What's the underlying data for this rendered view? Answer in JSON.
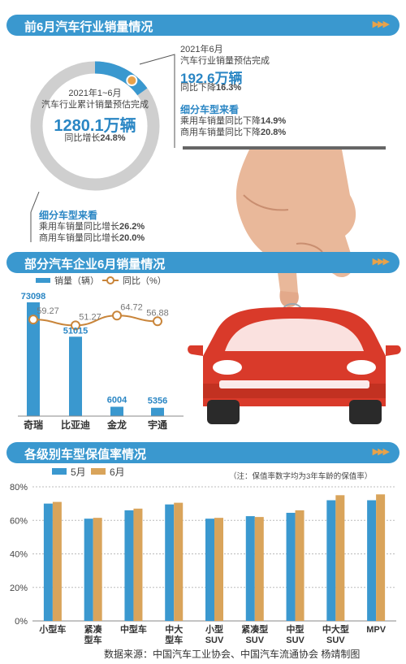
{
  "sections": {
    "s1_title": "前6月汽车行业销量情况",
    "s2_title": "部分汽车企业6月销量情况",
    "s3_title": "各级别车型保值率情况",
    "arrows": "▶▶▶"
  },
  "ring": {
    "period": "2021年1~6月",
    "desc": "汽车行业累计销量预估完成",
    "value": "1280.1万辆",
    "growth_label": "同比增长",
    "growth_value": "24.8%"
  },
  "june": {
    "period": "2021年6月",
    "desc": "汽车行业销量预估完成",
    "value": "192.6万辆",
    "change_label": "同比下降",
    "change_value": "16.3%",
    "sub_title": "细分车型来看",
    "passenger_label": "乘用车销量同比下降",
    "passenger_value": "14.9%",
    "commercial_label": "商用车销量同比下降",
    "commercial_value": "20.8%"
  },
  "half_year_breakdown": {
    "sub_title": "细分车型来看",
    "passenger_label": "乘用车销量同比增长",
    "passenger_value": "26.2%",
    "commercial_label": "商用车销量同比增长",
    "commercial_value": "20.0%"
  },
  "colors": {
    "blue": "#3a98cf",
    "orange": "#d9a45b",
    "line_orange": "#c9853a",
    "ring_gray": "#cfcfcf",
    "car_red": "#d93a2a"
  },
  "chart_data": [
    {
      "type": "bar",
      "categories": [
        "奇瑞",
        "比亚迪",
        "金龙",
        "宇通"
      ],
      "series": [
        {
          "name": "销量（辆）",
          "values": [
            73098,
            51015,
            6004,
            5356
          ]
        },
        {
          "name": "同比（%）",
          "type": "line",
          "values": [
            59.27,
            51.27,
            64.72,
            56.88
          ]
        }
      ],
      "legend": [
        "销量（辆）",
        "同比（%）"
      ],
      "value_labels": [
        "73098",
        "51015",
        "6004",
        "5356"
      ],
      "line_labels": [
        "59.27",
        "51.27",
        "64.72",
        "56.88"
      ]
    },
    {
      "type": "bar",
      "categories": [
        "小型车",
        "紧凑\n型车",
        "中型车",
        "中大\n型车",
        "小型\nSUV",
        "紧凑型\nSUV",
        "中型\nSUV",
        "中大型\nSUV",
        "MPV"
      ],
      "series": [
        {
          "name": "5月",
          "values": [
            70,
            61,
            66,
            69.5,
            61,
            62.5,
            64.5,
            72,
            72
          ]
        },
        {
          "name": "6月",
          "values": [
            71,
            61.5,
            67,
            70.5,
            61.5,
            62,
            66,
            75,
            75.5
          ]
        }
      ],
      "ylim": [
        0,
        80
      ],
      "yticks": [
        "0%",
        "20%",
        "40%",
        "60%",
        "80%"
      ],
      "note": "（注：保值率数字均为3年车龄的保值率）"
    }
  ],
  "source": "数据来源：中国汽车工业协会、中国汽车流通协会    杨靖制图"
}
